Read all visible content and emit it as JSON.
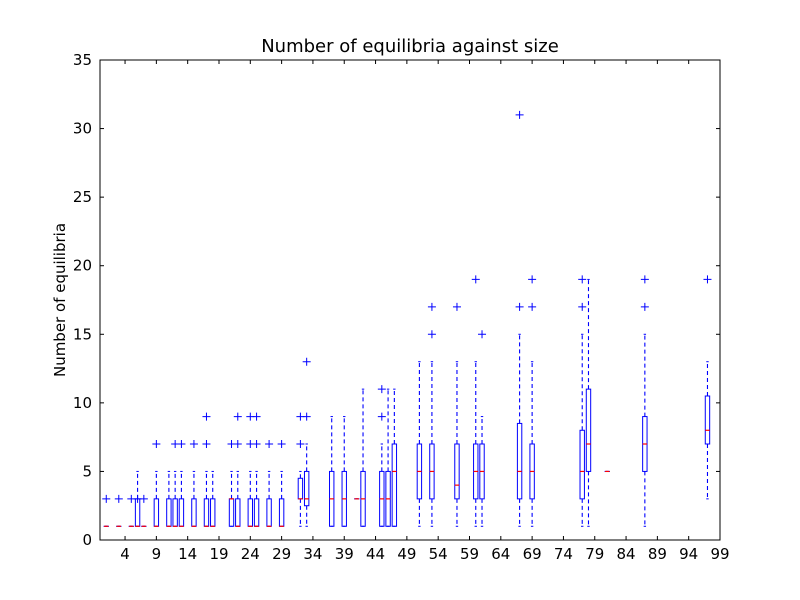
{
  "chart_data": {
    "type": "boxplot",
    "title": "Number of equilibria against size",
    "xlabel": "",
    "ylabel": "Number of equilibria",
    "xlim": [
      0,
      99
    ],
    "ylim": [
      0,
      35
    ],
    "x_ticks": [
      4,
      9,
      14,
      19,
      24,
      29,
      34,
      39,
      44,
      49,
      54,
      59,
      64,
      69,
      74,
      79,
      84,
      89,
      94,
      99
    ],
    "y_ticks": [
      0,
      5,
      10,
      15,
      20,
      25,
      30,
      35
    ],
    "grid": false,
    "colors": {
      "box": "#0000ff",
      "median": "#ff0000",
      "flier": "#0000ff",
      "axes": "#000000"
    },
    "boxes": [
      {
        "x": 1,
        "q1": 1,
        "median": 1,
        "q3": 1,
        "whislo": 1,
        "whishi": 1,
        "fliers": [
          3
        ]
      },
      {
        "x": 3,
        "q1": 1,
        "median": 1,
        "q3": 1,
        "whislo": 1,
        "whishi": 1,
        "fliers": [
          3
        ]
      },
      {
        "x": 5,
        "q1": 1,
        "median": 1,
        "q3": 1,
        "whislo": 1,
        "whishi": 1,
        "fliers": [
          3
        ]
      },
      {
        "x": 6,
        "q1": 1,
        "median": 1,
        "q3": 3,
        "whislo": 1,
        "whishi": 5,
        "fliers": [
          3
        ]
      },
      {
        "x": 7,
        "q1": 1,
        "median": 1,
        "q3": 1,
        "whislo": 1,
        "whishi": 1,
        "fliers": [
          3
        ]
      },
      {
        "x": 9,
        "q1": 1,
        "median": 1,
        "q3": 3,
        "whislo": 1,
        "whishi": 5,
        "fliers": [
          7
        ]
      },
      {
        "x": 11,
        "q1": 1,
        "median": 1,
        "q3": 3,
        "whislo": 1,
        "whishi": 5,
        "fliers": []
      },
      {
        "x": 12,
        "q1": 1,
        "median": 1,
        "q3": 3,
        "whislo": 1,
        "whishi": 5,
        "fliers": [
          7
        ]
      },
      {
        "x": 13,
        "q1": 1,
        "median": 1,
        "q3": 3,
        "whislo": 1,
        "whishi": 5,
        "fliers": [
          7
        ]
      },
      {
        "x": 15,
        "q1": 1,
        "median": 1,
        "q3": 3,
        "whislo": 1,
        "whishi": 5,
        "fliers": [
          7
        ]
      },
      {
        "x": 17,
        "q1": 1,
        "median": 1,
        "q3": 3,
        "whislo": 1,
        "whishi": 5,
        "fliers": [
          7,
          9
        ]
      },
      {
        "x": 18,
        "q1": 1,
        "median": 1,
        "q3": 3,
        "whislo": 1,
        "whishi": 5,
        "fliers": []
      },
      {
        "x": 21,
        "q1": 1,
        "median": 3,
        "q3": 3,
        "whislo": 1,
        "whishi": 5,
        "fliers": [
          7
        ]
      },
      {
        "x": 22,
        "q1": 1,
        "median": 1,
        "q3": 3,
        "whislo": 1,
        "whishi": 5,
        "fliers": [
          7,
          9
        ]
      },
      {
        "x": 24,
        "q1": 1,
        "median": 1,
        "q3": 3,
        "whislo": 1,
        "whishi": 5,
        "fliers": [
          7,
          9
        ]
      },
      {
        "x": 25,
        "q1": 1,
        "median": 1,
        "q3": 3,
        "whislo": 1,
        "whishi": 5,
        "fliers": [
          7,
          9
        ]
      },
      {
        "x": 27,
        "q1": 1,
        "median": 1,
        "q3": 3,
        "whislo": 1,
        "whishi": 5,
        "fliers": [
          7
        ]
      },
      {
        "x": 29,
        "q1": 1,
        "median": 1,
        "q3": 3,
        "whislo": 1,
        "whishi": 5,
        "fliers": [
          7
        ]
      },
      {
        "x": 32,
        "q1": 3,
        "median": 3,
        "q3": 4.5,
        "whislo": 1,
        "whishi": 5,
        "fliers": [
          7,
          9
        ]
      },
      {
        "x": 33,
        "q1": 2.5,
        "median": 3,
        "q3": 5,
        "whislo": 1,
        "whishi": 7,
        "fliers": [
          9,
          13
        ]
      },
      {
        "x": 37,
        "q1": 1,
        "median": 3,
        "q3": 5,
        "whislo": 1,
        "whishi": 9,
        "fliers": []
      },
      {
        "x": 39,
        "q1": 1,
        "median": 3,
        "q3": 5,
        "whislo": 1,
        "whishi": 9,
        "fliers": []
      },
      {
        "x": 41,
        "q1": 3,
        "median": 3,
        "q3": 3,
        "whislo": 3,
        "whishi": 3,
        "fliers": []
      },
      {
        "x": 42,
        "q1": 1,
        "median": 3,
        "q3": 5,
        "whislo": 1,
        "whishi": 11,
        "fliers": []
      },
      {
        "x": 45,
        "q1": 1,
        "median": 3,
        "q3": 5,
        "whislo": 1,
        "whishi": 7,
        "fliers": [
          9,
          11
        ]
      },
      {
        "x": 46,
        "q1": 1,
        "median": 3,
        "q3": 5,
        "whislo": 1,
        "whishi": 11,
        "fliers": []
      },
      {
        "x": 47,
        "q1": 1,
        "median": 5,
        "q3": 7,
        "whislo": 1,
        "whishi": 11,
        "fliers": []
      },
      {
        "x": 51,
        "q1": 3,
        "median": 5,
        "q3": 7,
        "whislo": 1,
        "whishi": 13,
        "fliers": []
      },
      {
        "x": 53,
        "q1": 3,
        "median": 5,
        "q3": 7,
        "whislo": 1,
        "whishi": 13,
        "fliers": [
          15,
          17
        ]
      },
      {
        "x": 57,
        "q1": 3,
        "median": 4,
        "q3": 7,
        "whislo": 1,
        "whishi": 13,
        "fliers": [
          17
        ]
      },
      {
        "x": 60,
        "q1": 3,
        "median": 5,
        "q3": 7,
        "whislo": 1,
        "whishi": 13,
        "fliers": [
          19
        ]
      },
      {
        "x": 61,
        "q1": 3,
        "median": 5,
        "q3": 7,
        "whislo": 1,
        "whishi": 9,
        "fliers": [
          15
        ]
      },
      {
        "x": 67,
        "q1": 3,
        "median": 5,
        "q3": 8.5,
        "whislo": 1,
        "whishi": 15,
        "fliers": [
          17,
          31
        ]
      },
      {
        "x": 69,
        "q1": 3,
        "median": 5,
        "q3": 7,
        "whislo": 1,
        "whishi": 13,
        "fliers": [
          17,
          19
        ]
      },
      {
        "x": 77,
        "q1": 3,
        "median": 5,
        "q3": 8,
        "whislo": 1,
        "whishi": 15,
        "fliers": [
          17,
          19
        ]
      },
      {
        "x": 78,
        "q1": 5,
        "median": 7,
        "q3": 11,
        "whislo": 1,
        "whishi": 19,
        "fliers": []
      },
      {
        "x": 81,
        "q1": 5,
        "median": 5,
        "q3": 5,
        "whislo": 5,
        "whishi": 5,
        "fliers": []
      },
      {
        "x": 87,
        "q1": 5,
        "median": 7,
        "q3": 9,
        "whislo": 1,
        "whishi": 15,
        "fliers": [
          17,
          19
        ]
      },
      {
        "x": 97,
        "q1": 7,
        "median": 8,
        "q3": 10.5,
        "whislo": 3,
        "whishi": 13,
        "fliers": [
          19
        ]
      }
    ]
  }
}
